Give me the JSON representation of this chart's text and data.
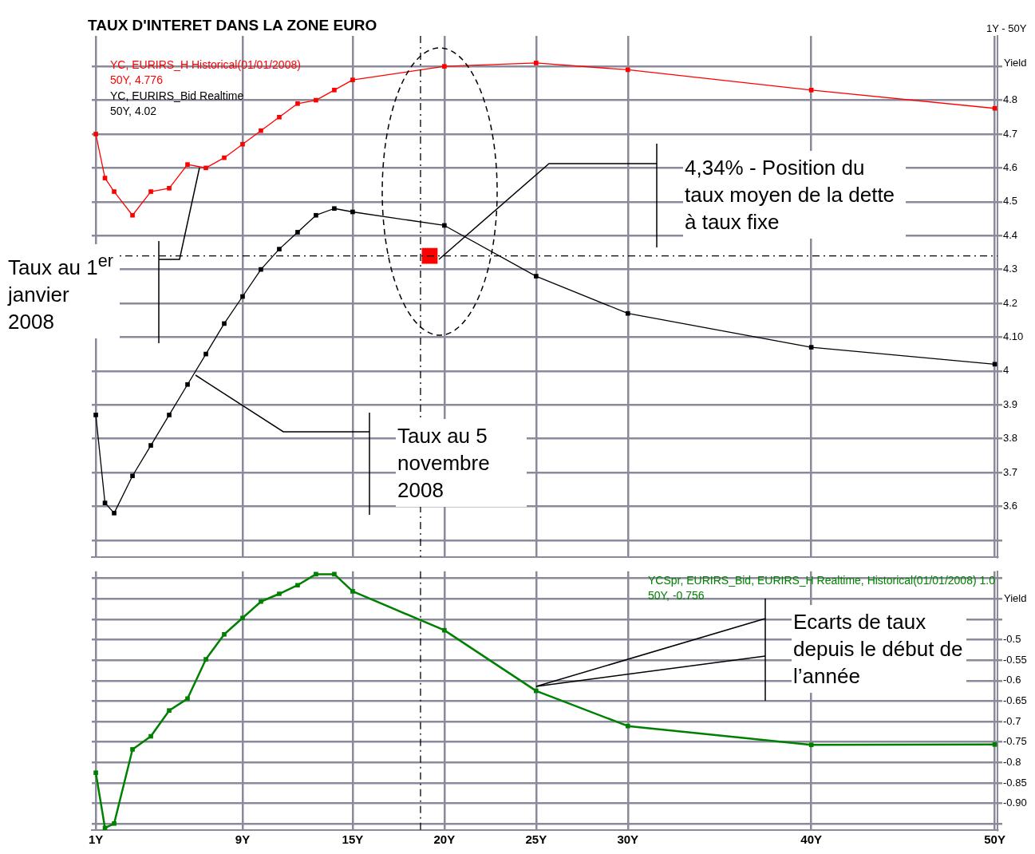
{
  "chart_data": [
    {
      "type": "line",
      "title": "TAUX D'INTERET DANS LA ZONE EURO",
      "ylabel": "Yield",
      "legend": "top left",
      "marker": "square",
      "grid": true,
      "tick_labels": "y",
      "x": [
        1,
        1.5,
        2,
        3,
        4,
        5,
        6,
        7,
        8,
        9,
        10,
        11,
        12,
        13,
        14,
        15,
        20,
        25,
        30,
        40,
        50
      ],
      "xlim": [
        0.78,
        50.15
      ],
      "xticks": [
        1,
        9,
        15,
        20,
        25,
        30,
        40,
        50
      ],
      "ylim": [
        3.45,
        4.99
      ],
      "yticks": [
        {
          "value": 3.5,
          "label": null
        },
        3.6,
        3.7,
        3.8,
        3.9,
        4,
        {
          "value": 4.1,
          "label": "4.10"
        },
        4.2,
        4.3,
        4.4,
        4.5,
        4.6,
        4.7,
        4.8,
        {
          "value": 4.9,
          "label": null
        }
      ],
      "series": [
        {
          "name": "YC, EURIRS_H Historical(01/01/2008)",
          "color": "#ff0000",
          "values": [
            4.7,
            4.57,
            4.53,
            4.46,
            4.53,
            4.54,
            4.61,
            4.6,
            4.63,
            4.67,
            4.71,
            4.75,
            4.79,
            4.8,
            4.83,
            4.86,
            4.9,
            4.91,
            4.89,
            4.83,
            4.776
          ]
        },
        {
          "name": "YC, EURIRS_Bid Realtime",
          "color": "#000000",
          "values": [
            3.87,
            3.61,
            3.58,
            3.69,
            3.78,
            3.87,
            3.96,
            4.05,
            4.14,
            4.22,
            4.3,
            4.36,
            4.41,
            4.46,
            4.48,
            4.47,
            4.43,
            4.28,
            4.17,
            4.07,
            4.02
          ]
        },
        {
          "type": "scatter",
          "color": "#ff0000",
          "x": [
            19.2
          ],
          "values": [
            4.34
          ]
        }
      ],
      "ref_lines": [
        {
          "axis": "y",
          "value": 4.34,
          "line_style": "dashed",
          "color": "#000000"
        },
        {
          "axis": "x",
          "value": 18.7,
          "line_style": "dashed",
          "color": "#000000"
        }
      ],
      "annotations": [
        "1Y - 50Y",
        "50Y, 4.776",
        "50Y, 4.02",
        "Taux au 1$^{er}$ janvier 2008",
        "Taux au 5 novembre 2008",
        "4,34% - Position du taux moyen de la dette à taux fixe"
      ]
    },
    {
      "type": "line",
      "ylabel": "Yield",
      "legend": "top right",
      "marker": "square",
      "grid": true,
      "x": [
        1,
        1.5,
        2,
        3,
        4,
        5,
        6,
        7,
        8,
        9,
        10,
        11,
        12,
        13,
        14,
        15,
        20,
        25,
        30,
        40,
        50
      ],
      "xlim": [
        0.78,
        50.15
      ],
      "xticks": [
        {
          "value": 1,
          "label": "1Y"
        },
        {
          "value": 9,
          "label": "9Y"
        },
        {
          "value": 15,
          "label": "15Y"
        },
        {
          "value": 20,
          "label": "20Y"
        },
        {
          "value": 25,
          "label": "25Y"
        },
        {
          "value": 30,
          "label": "30Y"
        },
        {
          "value": 40,
          "label": "40Y"
        },
        {
          "value": 50,
          "label": "50Y"
        }
      ],
      "ylim": [
        -0.965,
        -0.333
      ],
      "yticks": [
        {
          "value": -0.95,
          "label": null
        },
        {
          "value": -0.9,
          "label": "-0.90"
        },
        -0.85,
        -0.8,
        -0.75,
        -0.7,
        -0.65,
        -0.6,
        -0.55,
        -0.5,
        {
          "value": -0.45,
          "label": null
        },
        {
          "value": -0.4,
          "label": null
        },
        {
          "value": -0.35,
          "label": null
        }
      ],
      "series": [
        {
          "name": "YCSpr, EURIRS_Bid, EURIRS_H Realtime, Historical(01/01/2008) 1.0",
          "color": "#008000",
          "values": [
            -0.825,
            -0.96,
            -0.949,
            -0.768,
            -0.736,
            -0.673,
            -0.644,
            -0.548,
            -0.487,
            -0.447,
            -0.407,
            -0.388,
            -0.367,
            -0.34,
            -0.34,
            -0.382,
            -0.477,
            -0.625,
            -0.711,
            -0.757,
            -0.756
          ]
        }
      ],
      "ref_lines": [
        {
          "axis": "x",
          "value": 18.7,
          "line_style": "dashed",
          "color": "#000000"
        }
      ],
      "annotations": [
        "50Y, -0.756",
        "Ecarts de taux depuis le début de l’année"
      ]
    }
  ]
}
